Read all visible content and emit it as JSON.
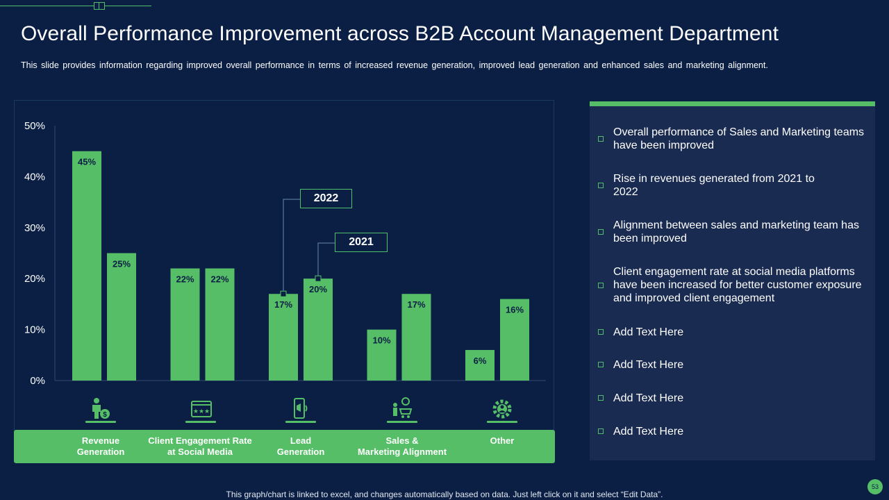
{
  "header": {
    "title": "Overall Performance Improvement across B2B Account Management Department",
    "subtitle": "This slide provides information regarding improved overall performance in terms of increased revenue generation, improved lead generation and enhanced sales and marketing alignment."
  },
  "chart_data": {
    "type": "bar",
    "title": "",
    "xlabel": "",
    "ylabel": "",
    "categories": [
      "Revenue Generation",
      "Client Engagement Rate at Social Media",
      "Lead Generation",
      "Sales & Marketing Alignment",
      "Other"
    ],
    "series": [
      {
        "name": "2022",
        "values": [
          45,
          22,
          17,
          10,
          6
        ],
        "color": "#55be67"
      },
      {
        "name": "2021",
        "values": [
          25,
          22,
          20,
          17,
          16
        ],
        "color": "#55be67"
      }
    ],
    "data_labels_2022": [
      "45%",
      "22%",
      "17%",
      "10%",
      "6%"
    ],
    "data_labels_2021": [
      "25%",
      "22%",
      "20%",
      "17%",
      "16%"
    ],
    "ylim": [
      0,
      50
    ],
    "yticks": [
      "0%",
      "10%",
      "20%",
      "30%",
      "40%",
      "50%"
    ],
    "legend": [
      "2022",
      "2021"
    ]
  },
  "category_labels": [
    [
      "Revenue",
      "Generation"
    ],
    [
      "Client Engagement Rate",
      "at Social Media"
    ],
    [
      "Lead",
      "Generation"
    ],
    [
      "Sales &",
      "Marketing Alignment"
    ],
    [
      "Other",
      ""
    ]
  ],
  "category_icons": [
    "revenue-person-icon",
    "engagement-rating-icon",
    "lead-phone-icon",
    "sales-marketing-icon",
    "gear-group-icon"
  ],
  "bullets": [
    "Overall performance of Sales and Marketing teams have been improved",
    "Rise in revenues generated from 2021 to 2022",
    "Alignment between sales and marketing team has been improved",
    "Client engagement rate at social media platforms have been increased for  better customer exposure and improved client engagement",
    "Add Text Here",
    "Add Text Here",
    "Add Text Here",
    "Add Text Here"
  ],
  "footer": "This graph/chart is linked to excel,  and changes automatically based on data. Just left click on it and select “Edit Data”.",
  "page_number": "53",
  "colors": {
    "background": "#0b1f45",
    "accent": "#55be67",
    "panel": "#1a2b52"
  }
}
